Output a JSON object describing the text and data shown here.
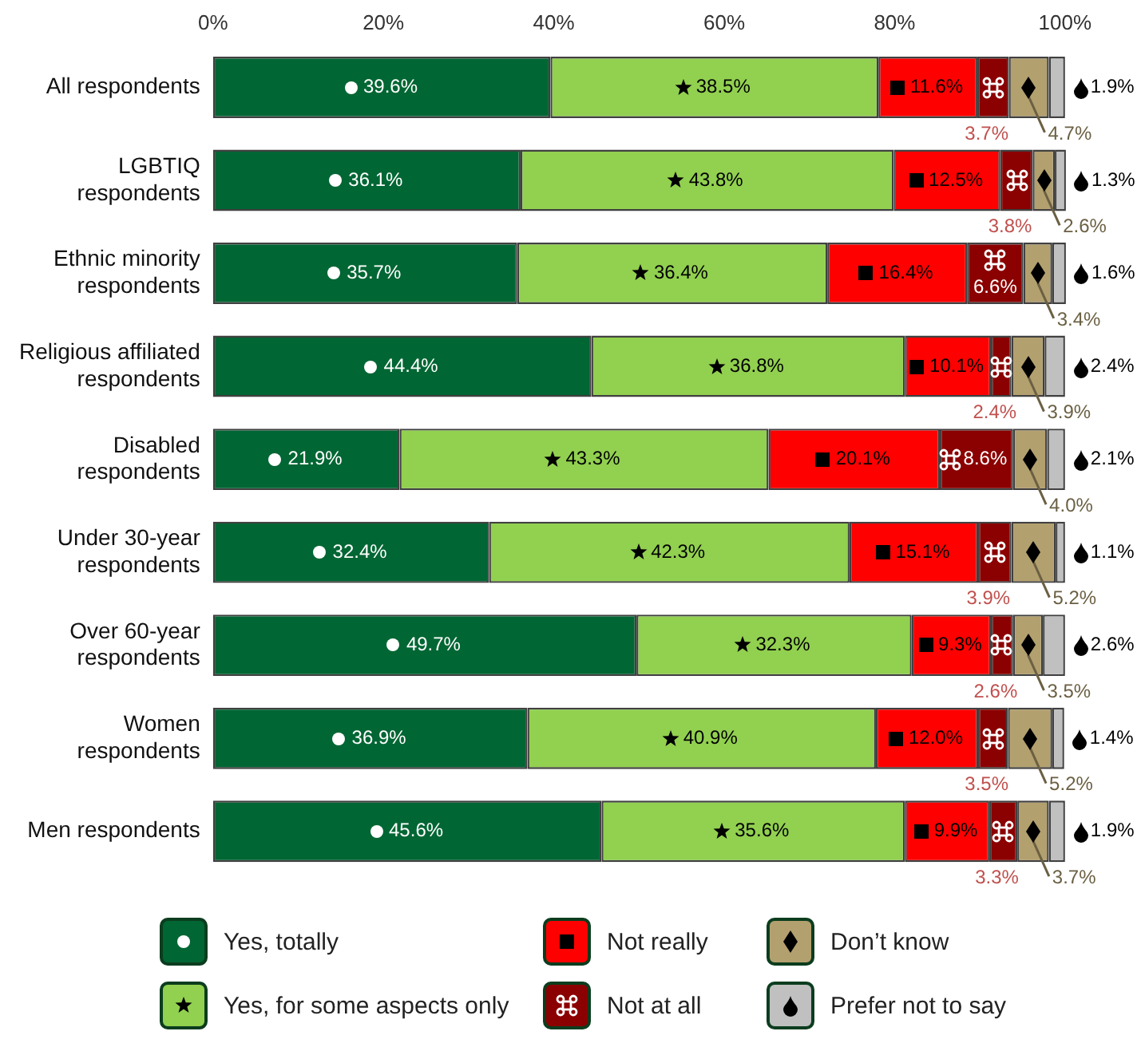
{
  "chart_data": {
    "type": "bar",
    "orientation": "horizontal",
    "stacked": true,
    "categories": [
      "All respondents",
      "LGBTIQ respondents",
      "Ethnic minority respondents",
      "Religious affiliated respondents",
      "Disabled respondents",
      "Under 30-year respondents",
      "Over 60-year respondents",
      "Women respondents",
      "Men respondents"
    ],
    "series": [
      {
        "name": "Yes, totally",
        "color": "#006633",
        "values": [
          39.6,
          36.1,
          35.7,
          44.4,
          21.9,
          32.4,
          49.7,
          36.9,
          45.6
        ],
        "value_labels": [
          "39.6%",
          "36.1%",
          "35.7%",
          "44.4%",
          "21.9%",
          "32.4%",
          "49.7%",
          "36.9%",
          "45.6%"
        ]
      },
      {
        "name": "Yes, for some aspects only",
        "color": "#92d050",
        "values": [
          38.5,
          43.8,
          36.4,
          36.8,
          43.3,
          42.3,
          32.3,
          40.9,
          35.6
        ],
        "value_labels": [
          "38.5%",
          "43.8%",
          "36.4%",
          "36.8%",
          "43.3%",
          "42.3%",
          "32.3%",
          "40.9%",
          "35.6%"
        ]
      },
      {
        "name": "Not really",
        "color": "#ff0000",
        "values": [
          11.6,
          12.5,
          16.4,
          10.1,
          20.1,
          15.1,
          9.3,
          12.0,
          9.9
        ],
        "value_labels": [
          "11.6%",
          "12.5%",
          "16.4%",
          "10.1%",
          "20.1%",
          "15.1%",
          "9.3%",
          "12.0%",
          "9.9%"
        ]
      },
      {
        "name": "Not at all",
        "color": "#8b0000",
        "values": [
          3.7,
          3.8,
          6.6,
          2.4,
          8.6,
          3.9,
          2.6,
          3.5,
          3.3
        ],
        "value_labels": [
          "3.7%",
          "3.8%",
          "6.6%",
          "2.4%",
          "8.6%",
          "3.9%",
          "2.6%",
          "3.5%",
          "3.3%"
        ]
      },
      {
        "name": "Don’t know",
        "color": "#b3a06f",
        "values": [
          4.7,
          2.6,
          3.4,
          3.9,
          4.0,
          5.2,
          3.5,
          5.2,
          3.7
        ],
        "value_labels": [
          "4.7%",
          "2.6%",
          "3.4%",
          "3.9%",
          "4.0%",
          "5.2%",
          "3.5%",
          "5.2%",
          "3.7%"
        ]
      },
      {
        "name": "Prefer not to say",
        "color": "#c0c0c0",
        "values": [
          1.9,
          1.3,
          1.6,
          2.4,
          2.1,
          1.1,
          2.6,
          1.4,
          1.9
        ],
        "value_labels": [
          "1.9%",
          "1.3%",
          "1.6%",
          "2.4%",
          "2.1%",
          "1.1%",
          "2.6%",
          "1.4%",
          "1.9%"
        ]
      }
    ],
    "xlim": [
      0,
      100.2
    ],
    "xticks": [
      {
        "value": 0,
        "label": "0%"
      },
      {
        "value": 20,
        "label": "20%"
      },
      {
        "value": 40,
        "label": "40%"
      },
      {
        "value": 60,
        "label": "60%"
      },
      {
        "value": 80,
        "label": "80%"
      },
      {
        "value": 100,
        "label": "100%"
      }
    ],
    "grid": false,
    "legend": "bottom"
  }
}
